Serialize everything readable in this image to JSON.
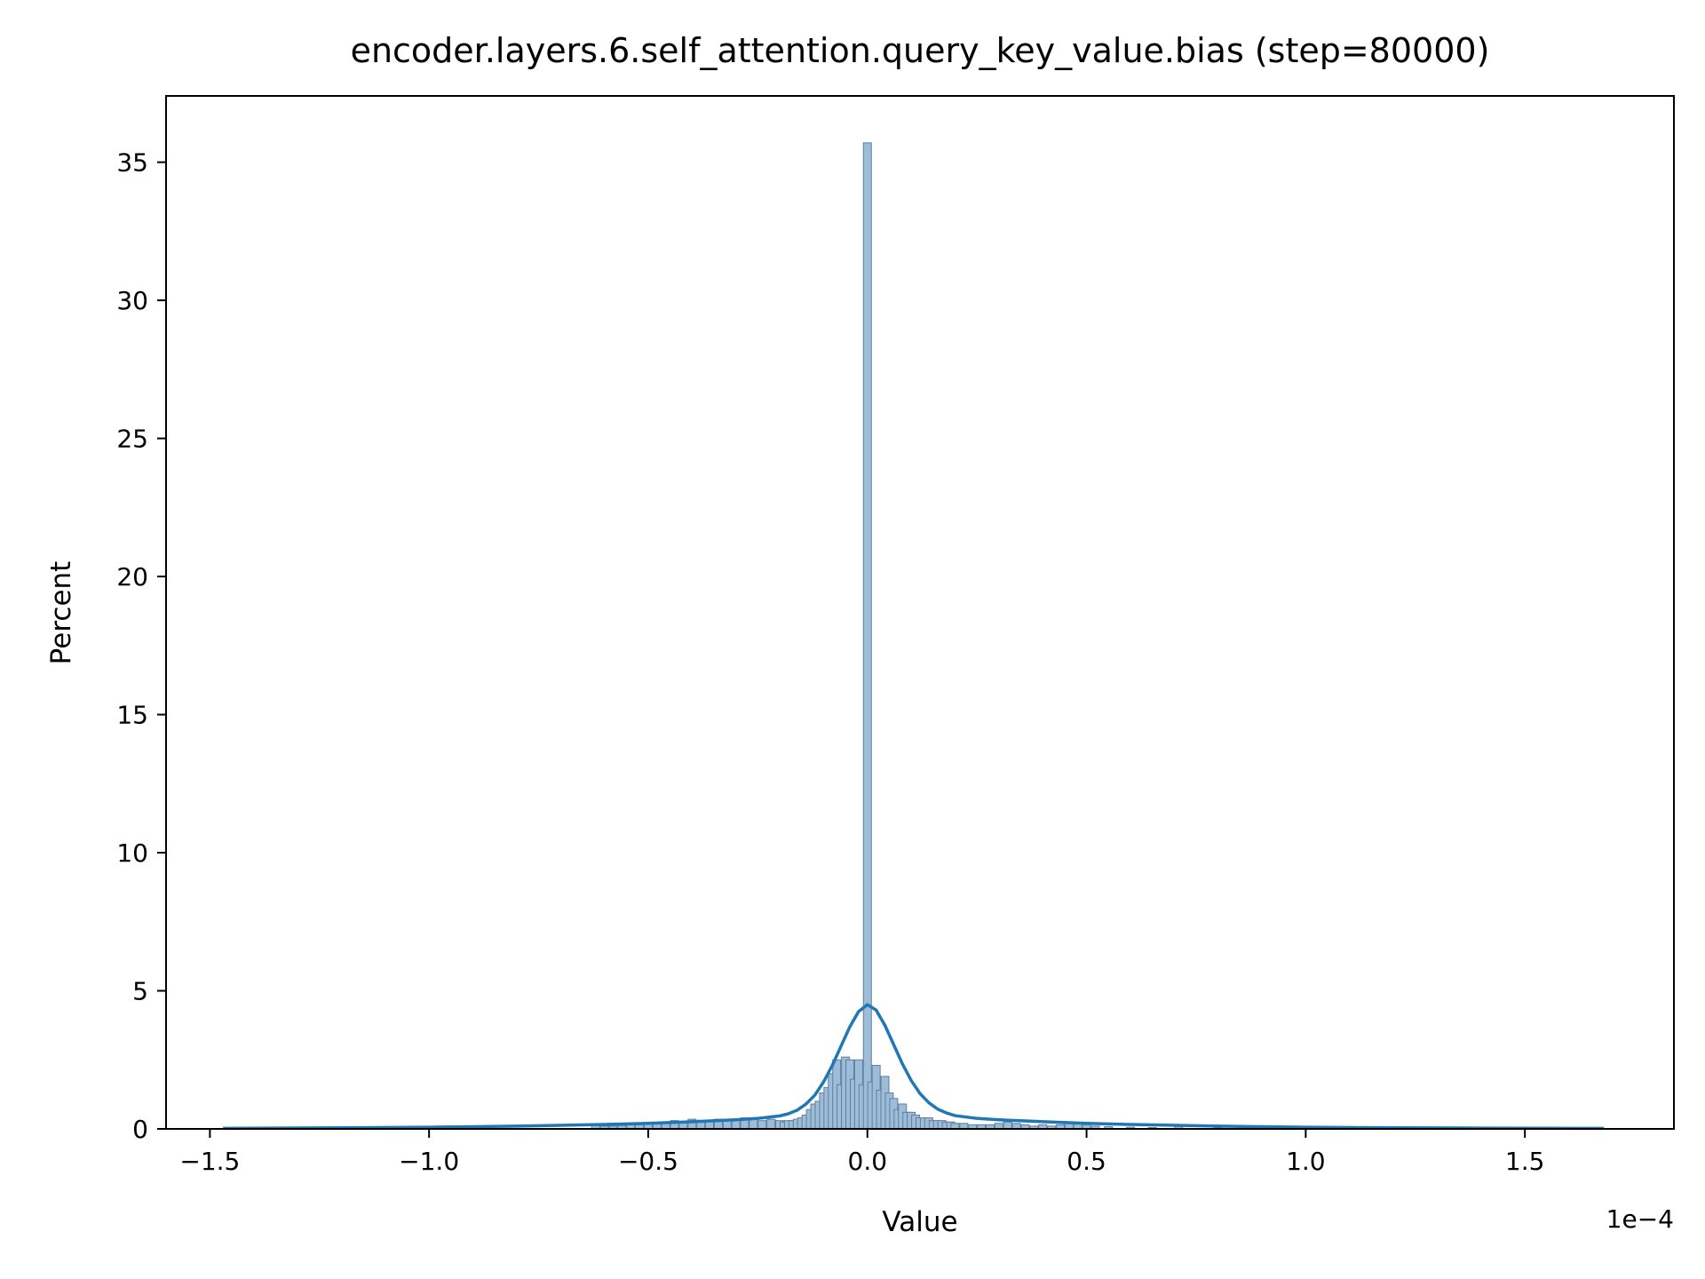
{
  "chart_data": {
    "type": "bar",
    "title": "encoder.layers.6.self_attention.query_key_value.bias (step=80000)",
    "xlabel": "Value",
    "ylabel": "Percent",
    "x_offset_label": "1e−4",
    "xlim": [
      -1.6,
      1.84
    ],
    "ylim": [
      0,
      37.4
    ],
    "x_ticks": [
      -1.5,
      -1.0,
      -0.5,
      0.0,
      0.5,
      1.0,
      1.5
    ],
    "x_tick_labels": [
      "−1.5",
      "−1.0",
      "−0.5",
      "0.0",
      "0.5",
      "1.0",
      "1.5"
    ],
    "y_ticks": [
      0,
      5,
      10,
      15,
      20,
      25,
      30,
      35
    ],
    "y_tick_labels": [
      "0",
      "5",
      "10",
      "15",
      "20",
      "25",
      "30",
      "35"
    ],
    "grid": false,
    "colors": {
      "bar_fill": "#9dbcd8",
      "bar_edge": "#5f7f9c",
      "kde_line": "#1f77b4",
      "axes": "#000000"
    },
    "histogram": {
      "x": [
        -0.62,
        -0.6,
        -0.58,
        -0.56,
        -0.54,
        -0.52,
        -0.5,
        -0.48,
        -0.46,
        -0.44,
        -0.42,
        -0.4,
        -0.38,
        -0.36,
        -0.34,
        -0.32,
        -0.3,
        -0.28,
        -0.26,
        -0.24,
        -0.22,
        -0.2,
        -0.19,
        -0.18,
        -0.17,
        -0.16,
        -0.15,
        -0.14,
        -0.13,
        -0.12,
        -0.11,
        -0.1,
        -0.09,
        -0.08,
        -0.07,
        -0.06,
        -0.05,
        -0.04,
        -0.03,
        -0.02,
        -0.01,
        0.0,
        0.01,
        0.02,
        0.03,
        0.04,
        0.05,
        0.06,
        0.07,
        0.08,
        0.09,
        0.1,
        0.11,
        0.12,
        0.13,
        0.14,
        0.15,
        0.16,
        0.17,
        0.18,
        0.19,
        0.2,
        0.22,
        0.24,
        0.26,
        0.28,
        0.3,
        0.32,
        0.34,
        0.36,
        0.38,
        0.4,
        0.42,
        0.44,
        0.46,
        0.48,
        0.5,
        0.52,
        0.55,
        0.6,
        0.65,
        0.71,
        0.8,
        0.9,
        1.0,
        1.2,
        1.4
      ],
      "values": [
        0.15,
        0.1,
        0.1,
        0.12,
        0.15,
        0.15,
        0.2,
        0.18,
        0.22,
        0.3,
        0.25,
        0.35,
        0.3,
        0.3,
        0.35,
        0.3,
        0.35,
        0.4,
        0.35,
        0.3,
        0.35,
        0.3,
        0.25,
        0.3,
        0.3,
        0.35,
        0.4,
        0.5,
        0.7,
        0.9,
        1.0,
        1.3,
        1.5,
        2.0,
        2.5,
        1.6,
        2.6,
        2.5,
        1.8,
        2.5,
        1.6,
        35.7,
        1.7,
        2.3,
        1.4,
        1.9,
        1.3,
        1.1,
        0.7,
        0.9,
        0.6,
        0.6,
        0.5,
        0.4,
        0.4,
        0.4,
        0.3,
        0.3,
        0.3,
        0.25,
        0.25,
        0.2,
        0.2,
        0.15,
        0.15,
        0.15,
        0.2,
        0.25,
        0.2,
        0.15,
        0.1,
        0.15,
        0.1,
        0.15,
        0.2,
        0.2,
        0.15,
        0.1,
        0.08,
        0.06,
        0.05,
        0.1,
        0.04,
        0.03,
        0.03,
        0.02,
        0.02
      ]
    },
    "kde": {
      "x": [
        -1.47,
        -1.2,
        -1.0,
        -0.8,
        -0.6,
        -0.5,
        -0.4,
        -0.3,
        -0.25,
        -0.2,
        -0.18,
        -0.16,
        -0.14,
        -0.12,
        -0.1,
        -0.08,
        -0.06,
        -0.04,
        -0.02,
        0.0,
        0.02,
        0.04,
        0.06,
        0.08,
        0.1,
        0.12,
        0.14,
        0.16,
        0.18,
        0.2,
        0.25,
        0.3,
        0.4,
        0.5,
        0.6,
        0.8,
        1.0,
        1.2,
        1.4,
        1.68
      ],
      "values": [
        0.02,
        0.04,
        0.06,
        0.1,
        0.16,
        0.2,
        0.26,
        0.33,
        0.38,
        0.47,
        0.55,
        0.68,
        0.9,
        1.22,
        1.7,
        2.3,
        3.0,
        3.7,
        4.25,
        4.5,
        4.3,
        3.75,
        3.05,
        2.35,
        1.75,
        1.28,
        0.95,
        0.72,
        0.58,
        0.48,
        0.38,
        0.33,
        0.26,
        0.2,
        0.16,
        0.1,
        0.06,
        0.04,
        0.03,
        0.02
      ]
    }
  }
}
